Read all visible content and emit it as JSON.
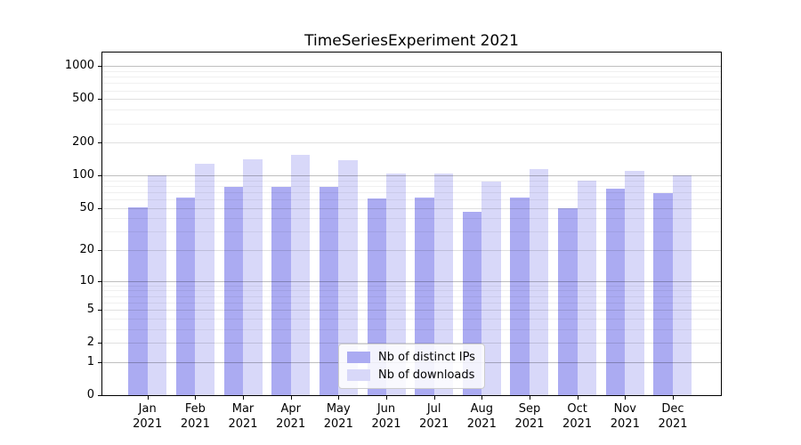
{
  "chart_data": {
    "type": "bar",
    "title": "TimeSeriesExperiment 2021",
    "scale": "log1p",
    "categories": [
      "Jan 2021",
      "Feb 2021",
      "Mar 2021",
      "Apr 2021",
      "May 2021",
      "Jun 2021",
      "Jul 2021",
      "Aug 2021",
      "Sep 2021",
      "Oct 2021",
      "Nov 2021",
      "Dec 2021"
    ],
    "series": [
      {
        "name": "Nb of distinct IPs",
        "color": "#ababf2",
        "values": [
          51,
          62,
          79,
          79,
          79,
          61,
          62,
          46,
          62,
          50,
          76,
          68
        ]
      },
      {
        "name": "Nb of downloads",
        "color": "#d8d8f9",
        "values": [
          100,
          129,
          140,
          154,
          138,
          103,
          103,
          88,
          115,
          90,
          110,
          100
        ]
      }
    ],
    "xlabel": "",
    "ylabel": "",
    "ylim": [
      0,
      1330
    ],
    "y_ticks": [
      0,
      1,
      2,
      5,
      10,
      20,
      50,
      100,
      200,
      500,
      1000
    ],
    "y_minor_ticks": [
      3,
      4,
      6,
      7,
      8,
      9,
      30,
      40,
      60,
      70,
      80,
      90,
      300,
      400,
      600,
      700,
      800,
      900
    ],
    "y_decade_ticks": [
      1,
      10,
      100,
      1000
    ],
    "grid": "on",
    "legend_position": "lower center"
  },
  "colors": {
    "ips_bar": "#ababf2",
    "downloads_bar": "#d8d8f9",
    "axis": "#000000",
    "legend_border": "#cccccc"
  },
  "legend": {
    "items": [
      "Nb of distinct IPs",
      "Nb of downloads"
    ]
  }
}
